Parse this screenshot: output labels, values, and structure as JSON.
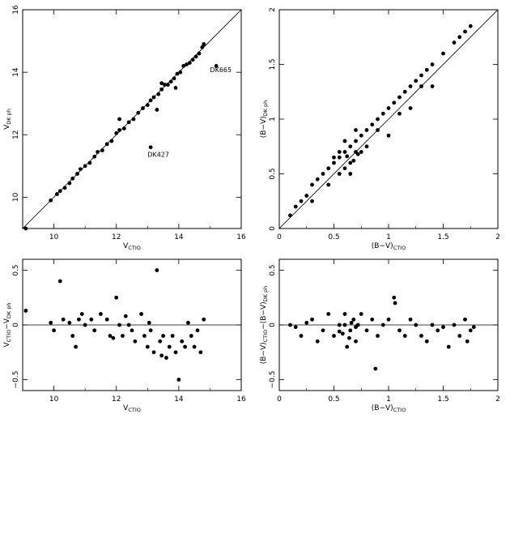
{
  "chart_data": [
    {
      "id": "v-compare",
      "type": "scatter",
      "xlabel": "V",
      "xlabel_sub": "CTIO",
      "ylabel": "V",
      "ylabel_sub": "DK ph",
      "xlim": [
        9,
        16
      ],
      "ylim": [
        9,
        16
      ],
      "xticks": [
        10,
        12,
        14,
        16
      ],
      "yticks": [
        10,
        12,
        14,
        16
      ],
      "reference_line": {
        "type": "identity"
      },
      "annotations": [
        {
          "text": "DK665",
          "x": 15.0,
          "y": 14.0
        },
        {
          "text": "DK427",
          "x": 13.0,
          "y": 11.3
        }
      ],
      "points": [
        [
          9.1,
          9.0
        ],
        [
          9.9,
          9.9
        ],
        [
          10.1,
          10.1
        ],
        [
          10.2,
          10.2
        ],
        [
          10.35,
          10.3
        ],
        [
          10.5,
          10.45
        ],
        [
          10.6,
          10.6
        ],
        [
          10.75,
          10.75
        ],
        [
          10.85,
          10.9
        ],
        [
          11.0,
          11.0
        ],
        [
          11.15,
          11.1
        ],
        [
          11.3,
          11.3
        ],
        [
          11.4,
          11.45
        ],
        [
          11.55,
          11.5
        ],
        [
          11.7,
          11.7
        ],
        [
          11.85,
          11.8
        ],
        [
          12.0,
          12.05
        ],
        [
          12.1,
          12.15
        ],
        [
          12.25,
          12.2
        ],
        [
          12.4,
          12.4
        ],
        [
          12.55,
          12.5
        ],
        [
          12.7,
          12.7
        ],
        [
          12.85,
          12.85
        ],
        [
          13.0,
          12.95
        ],
        [
          13.1,
          13.1
        ],
        [
          13.2,
          13.2
        ],
        [
          13.35,
          13.3
        ],
        [
          13.45,
          13.45
        ],
        [
          13.55,
          13.6
        ],
        [
          13.65,
          13.6
        ],
        [
          13.75,
          13.7
        ],
        [
          13.85,
          13.8
        ],
        [
          13.95,
          13.95
        ],
        [
          14.05,
          14.0
        ],
        [
          14.15,
          14.2
        ],
        [
          14.25,
          14.25
        ],
        [
          14.35,
          14.3
        ],
        [
          14.45,
          14.4
        ],
        [
          14.55,
          14.5
        ],
        [
          14.65,
          14.6
        ],
        [
          14.75,
          14.8
        ],
        [
          14.8,
          14.9
        ],
        [
          15.2,
          14.2
        ],
        [
          13.1,
          11.6
        ],
        [
          13.3,
          12.8
        ],
        [
          13.45,
          13.65
        ],
        [
          13.9,
          13.5
        ],
        [
          12.1,
          12.5
        ]
      ]
    },
    {
      "id": "bv-compare",
      "type": "scatter",
      "xlabel": "(B−V)",
      "xlabel_sub": "CTIO",
      "ylabel": "(B−V)",
      "ylabel_sub": "DK ph",
      "xlim": [
        0,
        2
      ],
      "ylim": [
        0,
        2
      ],
      "xticks": [
        0,
        0.5,
        1,
        1.5,
        2
      ],
      "yticks": [
        0,
        0.5,
        1,
        1.5,
        2
      ],
      "reference_line": {
        "type": "identity"
      },
      "points": [
        [
          0.1,
          0.12
        ],
        [
          0.15,
          0.2
        ],
        [
          0.2,
          0.25
        ],
        [
          0.25,
          0.3
        ],
        [
          0.3,
          0.4
        ],
        [
          0.35,
          0.45
        ],
        [
          0.4,
          0.5
        ],
        [
          0.45,
          0.55
        ],
        [
          0.5,
          0.6
        ],
        [
          0.55,
          0.65
        ],
        [
          0.6,
          0.7
        ],
        [
          0.65,
          0.75
        ],
        [
          0.7,
          0.8
        ],
        [
          0.75,
          0.85
        ],
        [
          0.8,
          0.9
        ],
        [
          0.85,
          0.95
        ],
        [
          0.9,
          1.0
        ],
        [
          0.95,
          1.05
        ],
        [
          1.0,
          1.1
        ],
        [
          1.05,
          1.15
        ],
        [
          1.1,
          1.2
        ],
        [
          1.15,
          1.25
        ],
        [
          1.2,
          1.3
        ],
        [
          1.25,
          1.35
        ],
        [
          1.3,
          1.4
        ],
        [
          1.35,
          1.45
        ],
        [
          1.4,
          1.5
        ],
        [
          1.5,
          1.6
        ],
        [
          1.6,
          1.7
        ],
        [
          1.65,
          1.75
        ],
        [
          1.7,
          1.8
        ],
        [
          1.75,
          1.85
        ],
        [
          0.3,
          0.25
        ],
        [
          0.45,
          0.4
        ],
        [
          0.55,
          0.5
        ],
        [
          0.6,
          0.55
        ],
        [
          0.65,
          0.6
        ],
        [
          0.7,
          0.7
        ],
        [
          0.75,
          0.7
        ],
        [
          0.8,
          0.75
        ],
        [
          0.9,
          0.9
        ],
        [
          1.0,
          0.85
        ],
        [
          1.1,
          1.05
        ],
        [
          1.2,
          1.1
        ],
        [
          1.3,
          1.3
        ],
        [
          1.4,
          1.3
        ],
        [
          0.5,
          0.65
        ],
        [
          0.6,
          0.8
        ],
        [
          0.7,
          0.9
        ],
        [
          0.55,
          0.7
        ],
        [
          0.65,
          0.5
        ],
        [
          0.68,
          0.62
        ],
        [
          0.62,
          0.66
        ],
        [
          0.72,
          0.68
        ]
      ]
    },
    {
      "id": "v-residual",
      "type": "scatter",
      "xlabel": "V",
      "xlabel_sub": "CTIO",
      "ylabel": "V",
      "ylabel_sub": "CTIO",
      "ylabel2": "−V",
      "ylabel2_sub": "DK ph",
      "xlim": [
        9,
        16
      ],
      "ylim": [
        -0.6,
        0.6
      ],
      "xticks": [
        10,
        12,
        14,
        16
      ],
      "yticks": [
        -0.5,
        0,
        0.5
      ],
      "reference_line": {
        "type": "horizontal",
        "y": 0
      },
      "points": [
        [
          9.1,
          0.13
        ],
        [
          9.9,
          0.02
        ],
        [
          10.0,
          -0.05
        ],
        [
          10.2,
          0.4
        ],
        [
          10.3,
          0.05
        ],
        [
          10.5,
          0.02
        ],
        [
          10.6,
          -0.1
        ],
        [
          10.7,
          -0.2
        ],
        [
          10.8,
          0.05
        ],
        [
          10.9,
          0.1
        ],
        [
          11.0,
          0.0
        ],
        [
          11.2,
          0.05
        ],
        [
          11.3,
          -0.05
        ],
        [
          11.5,
          0.1
        ],
        [
          11.7,
          0.05
        ],
        [
          11.8,
          -0.1
        ],
        [
          12.0,
          0.25
        ],
        [
          12.1,
          0.0
        ],
        [
          12.2,
          -0.1
        ],
        [
          12.4,
          0.0
        ],
        [
          12.5,
          -0.05
        ],
        [
          12.6,
          -0.15
        ],
        [
          12.8,
          0.1
        ],
        [
          12.9,
          -0.1
        ],
        [
          13.0,
          -0.2
        ],
        [
          13.1,
          -0.05
        ],
        [
          13.2,
          -0.25
        ],
        [
          13.3,
          0.5
        ],
        [
          13.4,
          -0.15
        ],
        [
          13.5,
          -0.1
        ],
        [
          13.6,
          -0.3
        ],
        [
          13.7,
          -0.2
        ],
        [
          13.8,
          -0.1
        ],
        [
          13.9,
          -0.25
        ],
        [
          14.0,
          -0.5
        ],
        [
          14.1,
          -0.15
        ],
        [
          14.2,
          -0.2
        ],
        [
          14.3,
          0.02
        ],
        [
          14.4,
          -0.1
        ],
        [
          14.5,
          -0.2
        ],
        [
          14.6,
          -0.05
        ],
        [
          14.8,
          0.05
        ],
        [
          14.7,
          -0.25
        ],
        [
          12.3,
          0.08
        ],
        [
          11.9,
          -0.12
        ],
        [
          13.05,
          0.02
        ],
        [
          13.45,
          -0.28
        ]
      ]
    },
    {
      "id": "bv-residual",
      "type": "scatter",
      "xlabel": "(B−V)",
      "xlabel_sub": "CTIO",
      "ylabel": "(B−V)",
      "ylabel_sub": "CTIO",
      "ylabel2": "−(B−V)",
      "ylabel2_sub": "DK ph",
      "xlim": [
        0,
        2
      ],
      "ylim": [
        -0.6,
        0.6
      ],
      "xticks": [
        0,
        0.5,
        1,
        1.5,
        2
      ],
      "yticks": [
        -0.5,
        0,
        0.5
      ],
      "reference_line": {
        "type": "horizontal",
        "y": 0
      },
      "points": [
        [
          0.1,
          0.0
        ],
        [
          0.15,
          -0.02
        ],
        [
          0.2,
          -0.1
        ],
        [
          0.25,
          0.02
        ],
        [
          0.3,
          0.05
        ],
        [
          0.35,
          -0.15
        ],
        [
          0.4,
          -0.05
        ],
        [
          0.45,
          0.1
        ],
        [
          0.5,
          -0.1
        ],
        [
          0.55,
          0.0
        ],
        [
          0.6,
          0.1
        ],
        [
          0.62,
          -0.2
        ],
        [
          0.65,
          -0.05
        ],
        [
          0.68,
          0.05
        ],
        [
          0.7,
          -0.15
        ],
        [
          0.72,
          0.0
        ],
        [
          0.75,
          0.1
        ],
        [
          0.8,
          -0.05
        ],
        [
          0.85,
          0.05
        ],
        [
          0.88,
          -0.4
        ],
        [
          0.9,
          -0.1
        ],
        [
          0.95,
          0.0
        ],
        [
          1.0,
          0.05
        ],
        [
          1.05,
          0.25
        ],
        [
          1.06,
          0.2
        ],
        [
          1.1,
          -0.05
        ],
        [
          1.15,
          -0.1
        ],
        [
          1.2,
          0.05
        ],
        [
          1.25,
          0.0
        ],
        [
          1.3,
          -0.1
        ],
        [
          1.35,
          -0.15
        ],
        [
          1.4,
          0.0
        ],
        [
          1.45,
          -0.05
        ],
        [
          1.5,
          -0.02
        ],
        [
          1.55,
          -0.2
        ],
        [
          1.6,
          0.0
        ],
        [
          1.65,
          -0.1
        ],
        [
          1.7,
          0.05
        ],
        [
          1.72,
          -0.15
        ],
        [
          1.75,
          -0.05
        ],
        [
          1.78,
          -0.02
        ],
        [
          0.58,
          -0.08
        ],
        [
          0.64,
          -0.12
        ],
        [
          0.66,
          0.02
        ],
        [
          0.7,
          -0.02
        ],
        [
          0.6,
          0.0
        ],
        [
          0.55,
          -0.06
        ]
      ]
    }
  ]
}
